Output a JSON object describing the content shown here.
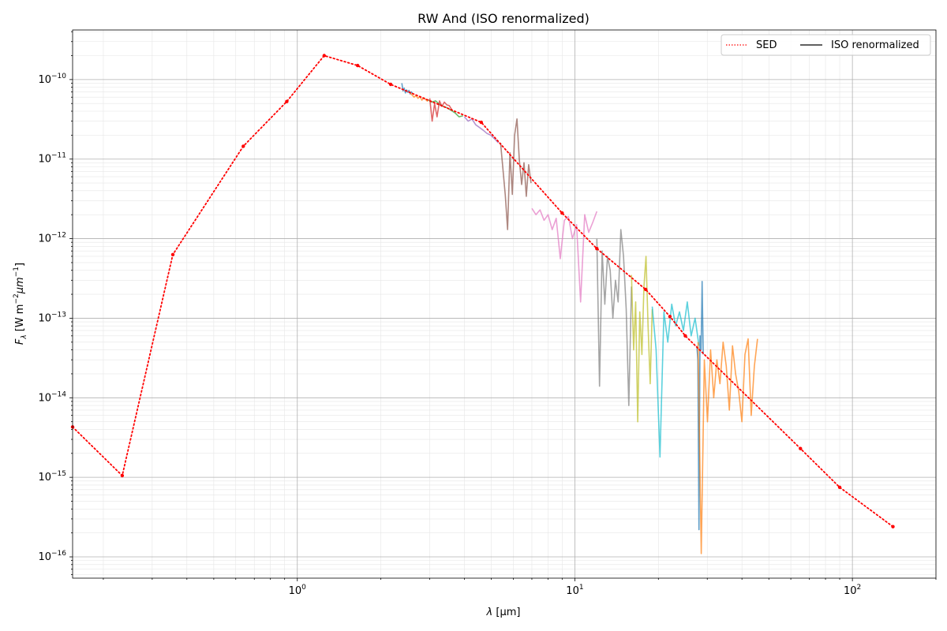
{
  "chart_data": {
    "type": "line",
    "title": "RW And (ISO renormalized)",
    "xlabel_main": "λ",
    "xlabel_unit": "[μm]",
    "ylabel_main": "F",
    "ylabel_sub": "λ",
    "ylabel_unit": "[W m",
    "ylabel_exp1": "−2",
    "ylabel_mu": "μm",
    "ylabel_exp2": "−1",
    "ylabel_close": "]",
    "xscale": "log",
    "yscale": "log",
    "xlim": [
      0.155,
      200
    ],
    "ylim": [
      5.4e-17,
      4.2e-10
    ],
    "grid": true,
    "legend_placement": "top-right",
    "x_ticks": [
      {
        "value": 1,
        "base": "10",
        "exp": "0"
      },
      {
        "value": 10,
        "base": "10",
        "exp": "1"
      },
      {
        "value": 100,
        "base": "10",
        "exp": "2"
      }
    ],
    "y_ticks": [
      {
        "value": 1e-16,
        "base": "10",
        "exp": "−16"
      },
      {
        "value": 1e-15,
        "base": "10",
        "exp": "−15"
      },
      {
        "value": 1e-14,
        "base": "10",
        "exp": "−14"
      },
      {
        "value": 1e-13,
        "base": "10",
        "exp": "−13"
      },
      {
        "value": 1e-12,
        "base": "10",
        "exp": "−12"
      },
      {
        "value": 1e-11,
        "base": "10",
        "exp": "−11"
      },
      {
        "value": 1e-10,
        "base": "10",
        "exp": "−10"
      }
    ],
    "legend": [
      {
        "label": "SED",
        "color": "#ff0000",
        "style": "dotted"
      },
      {
        "label": "ISO renormalized",
        "color": "#000000",
        "style": "solid"
      }
    ],
    "sed": {
      "name": "SED",
      "color": "#ff0000",
      "x": [
        0.155,
        0.234,
        0.356,
        0.639,
        0.916,
        1.25,
        1.65,
        2.17,
        4.6,
        9.0,
        12.0,
        18.0,
        22.0,
        25.0,
        65.0,
        90.0,
        140.0
      ],
      "y": [
        4.3e-15,
        1.05e-15,
        6.3e-13,
        1.45e-11,
        5.3e-11,
        2e-10,
        1.5e-10,
        8.7e-11,
        2.9e-11,
        2.1e-12,
        7.5e-13,
        2.3e-13,
        1.05e-13,
        6e-14,
        2.3e-15,
        7.5e-16,
        2.4e-16
      ]
    },
    "iso_segments": [
      {
        "color": "#1f77b4",
        "x_range": [
          2.38,
          2.6
        ],
        "y": [
          9e-11,
          7.2e-11,
          7.8e-11,
          6.8e-11,
          7.4e-11,
          6.9e-11,
          7.3e-11,
          6.6e-11,
          7e-11,
          6.7e-11
        ]
      },
      {
        "color": "#ff7f0e",
        "x_range": [
          2.55,
          2.95
        ],
        "y": [
          6.8e-11,
          6.4e-11,
          6e-11,
          6.3e-11,
          5.8e-11,
          6.1e-11,
          5.5e-11,
          5.9e-11,
          5.6e-11,
          5.3e-11
        ]
      },
      {
        "color": "#2ca02c",
        "x_range": [
          2.95,
          3.95
        ],
        "y": [
          5.6e-11,
          5.2e-11,
          5.4e-11,
          4.9e-11,
          4.6e-11,
          4.4e-11,
          4.1e-11,
          3.8e-11,
          3.4e-11,
          3.5e-11
        ]
      },
      {
        "color": "#d62728",
        "x_range": [
          3.0,
          3.6
        ],
        "y": [
          5.8e-11,
          3e-11,
          5e-11,
          3.4e-11,
          5.4e-11,
          4.6e-11,
          5.2e-11,
          4.8e-11,
          4.7e-11,
          4.2e-11
        ]
      },
      {
        "color": "#9467bd",
        "x_range": [
          4.0,
          5.3
        ],
        "y": [
          3.4e-11,
          3e-11,
          3.2e-11,
          2.7e-11,
          2.5e-11,
          2.3e-11,
          2.1e-11,
          2e-11,
          1.8e-11,
          1.6e-11
        ]
      },
      {
        "color": "#8c564b",
        "x_range": [
          5.4,
          6.95
        ],
        "y": [
          1.6e-11,
          7.5e-12,
          3.5e-12,
          1.3e-12,
          1.2e-11,
          3.6e-12,
          2e-11,
          3.2e-11,
          1e-11,
          4.8e-12,
          9e-12,
          3.4e-12,
          8.5e-12,
          5e-12
        ]
      },
      {
        "color": "#e377c2",
        "x_range": [
          7.0,
          12.0
        ],
        "y": [
          2.4e-12,
          2e-12,
          2.3e-12,
          1.7e-12,
          2e-12,
          1.3e-12,
          1.8e-12,
          5.6e-13,
          1.7e-12,
          1.9e-12,
          1e-12,
          1.5e-12,
          1.6e-13,
          2e-12,
          1.2e-12,
          1.6e-12,
          2.2e-12
        ]
      },
      {
        "color": "#7f7f7f",
        "x_range": [
          12.0,
          16.0
        ],
        "y": [
          1e-12,
          1.4e-14,
          7e-13,
          1.5e-13,
          6e-13,
          4e-13,
          1e-13,
          3e-13,
          1.6e-13,
          1.3e-12,
          6e-13,
          1.3e-13,
          8e-15,
          2.5e-13
        ]
      },
      {
        "color": "#bcbd22",
        "x_range": [
          16.0,
          19.0
        ],
        "y": [
          3.5e-13,
          4e-14,
          1.6e-13,
          5e-15,
          1.2e-13,
          3.5e-14,
          2.5e-13,
          6e-13,
          8e-14,
          1.5e-14,
          1.3e-13
        ]
      },
      {
        "color": "#17becf",
        "x_range": [
          19.0,
          28.0
        ],
        "y": [
          1.4e-13,
          4e-14,
          1.8e-15,
          1.2e-13,
          5e-14,
          1.5e-13,
          8e-14,
          1.2e-13,
          7e-14,
          1.6e-13,
          6e-14,
          1e-13,
          4.5e-14
        ]
      },
      {
        "color": "#1f77b4",
        "x_range": [
          27.5,
          29.0
        ],
        "y": [
          4.5e-14,
          3e-14,
          2.2e-16,
          6e-14,
          4e-14,
          2.9e-13,
          3.5e-14
        ]
      },
      {
        "color": "#ff7f0e",
        "x_range": [
          27.8,
          45.5
        ],
        "y": [
          5e-14,
          1.1e-16,
          3e-14,
          5e-15,
          4e-14,
          1e-14,
          3e-14,
          1.5e-14,
          5e-14,
          2.5e-14,
          7e-15,
          4.5e-14,
          2e-14,
          1.2e-14,
          5e-15,
          3.5e-14,
          5.5e-14,
          6e-15,
          2.5e-14,
          5.5e-14
        ]
      }
    ]
  }
}
